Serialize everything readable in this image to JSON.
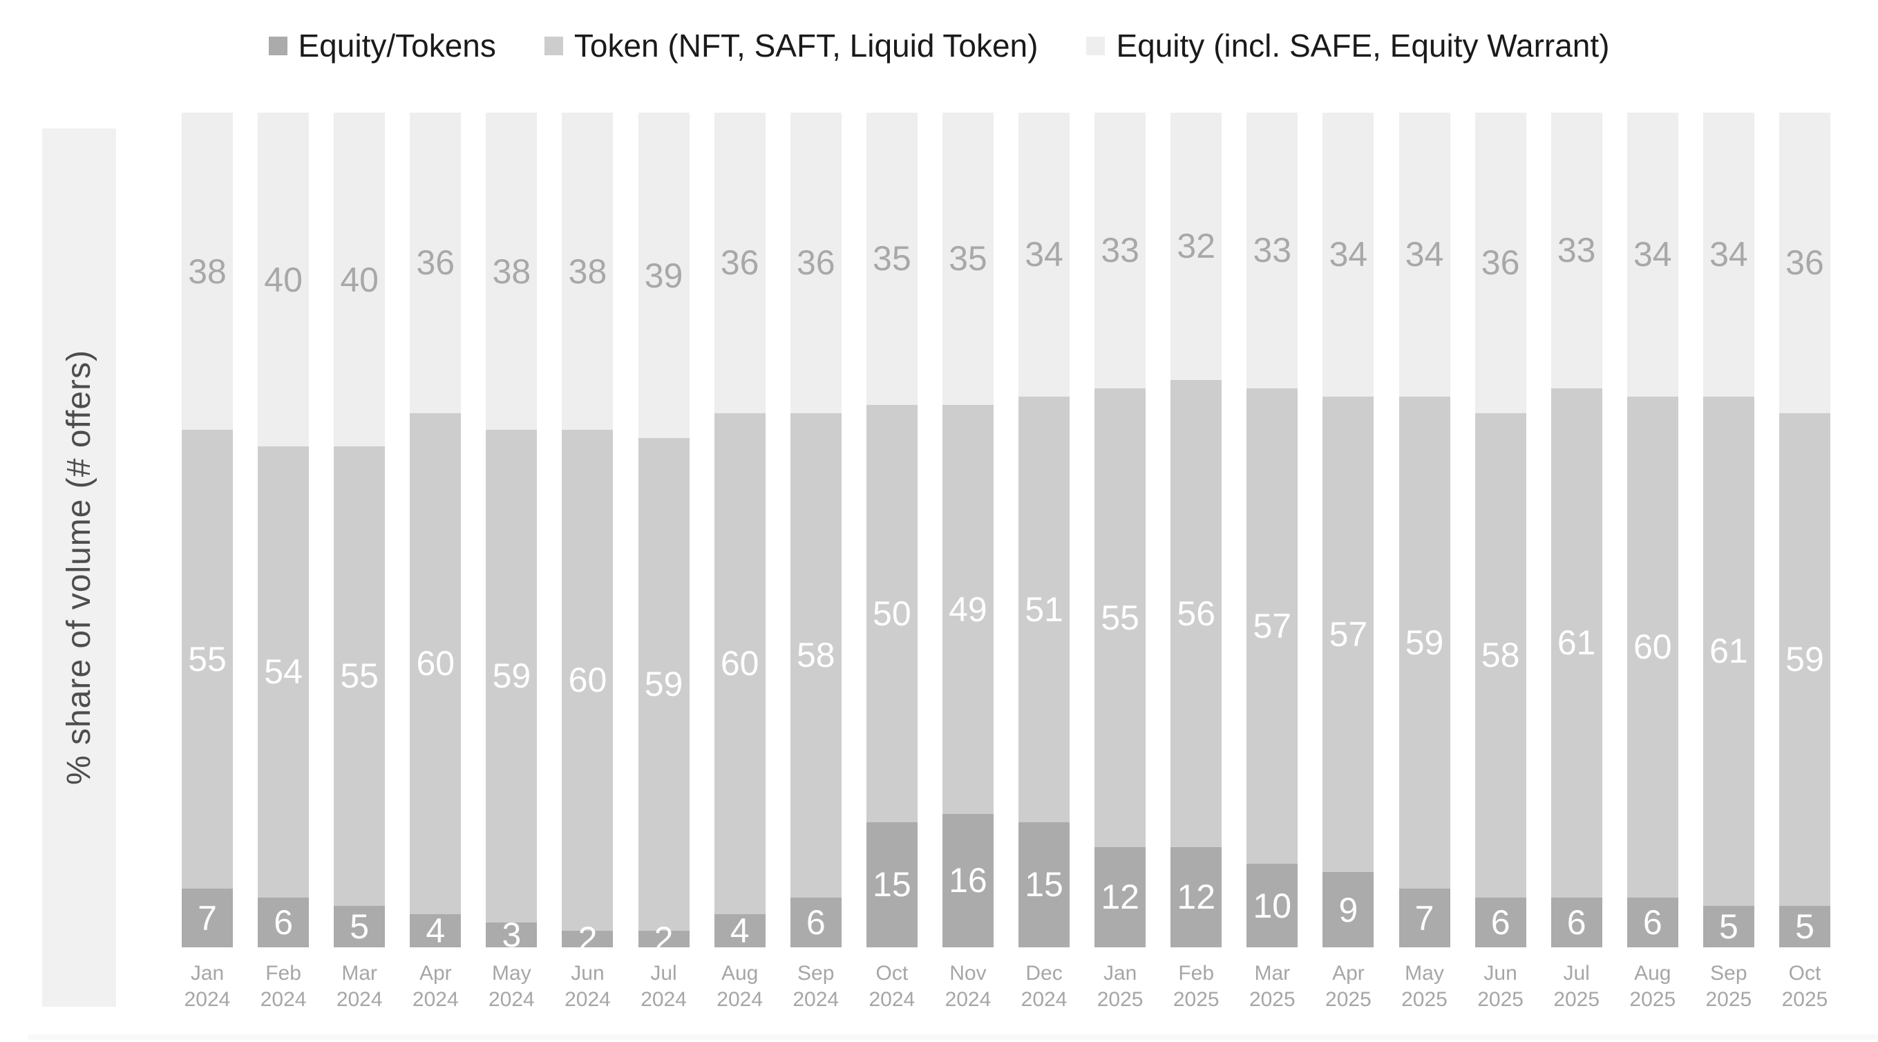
{
  "colors": {
    "background": "#ffffff",
    "legend_text": "#1a1a1a",
    "y_band_background": "#f1f1f1",
    "y_label_text": "#4d4d4d",
    "axis_label_text": "#a6a6a6",
    "inner_value_label_text": "#ffffff",
    "top_value_label_text": "#a8a8a8",
    "bottom_divider": "#f8f8f8"
  },
  "chart_data": {
    "type": "bar",
    "stacked": true,
    "units": "percent_share",
    "title": "",
    "xlabel": "",
    "ylabel": "% share of volume (# offers)",
    "ylim": [
      0,
      100
    ],
    "grid": false,
    "legend_position": "top",
    "series_order": "bottom-to-top",
    "categories": [
      "Jan 2024",
      "Feb 2024",
      "Mar 2024",
      "Apr 2024",
      "May 2024",
      "Jun 2024",
      "Jul 2024",
      "Aug 2024",
      "Sep 2024",
      "Oct 2024",
      "Nov 2024",
      "Dec 2024",
      "Jan 2025",
      "Feb 2025",
      "Mar 2025",
      "Apr 2025",
      "May 2025",
      "Jun 2025",
      "Jul 2025",
      "Aug 2025",
      "Sep 2025",
      "Oct 2025"
    ],
    "series": [
      {
        "id": "equity-tokens",
        "name": "Equity/Tokens",
        "color": "#ababab",
        "label_color": "#ffffff",
        "values": [
          7,
          6,
          5,
          4,
          3,
          2,
          2,
          4,
          6,
          15,
          16,
          15,
          12,
          12,
          10,
          9,
          7,
          6,
          6,
          6,
          5,
          5
        ]
      },
      {
        "id": "token",
        "name": "Token (NFT, SAFT, Liquid Token)",
        "color": "#cdcdcd",
        "label_color": "#ffffff",
        "values": [
          55,
          54,
          55,
          60,
          59,
          60,
          59,
          60,
          58,
          50,
          49,
          51,
          55,
          56,
          57,
          57,
          59,
          58,
          61,
          60,
          61,
          59
        ]
      },
      {
        "id": "equity",
        "name": "Equity (incl. SAFE, Equity Warrant)",
        "color": "#eeeeee",
        "label_color": "#a8a8a8",
        "values": [
          38,
          40,
          40,
          36,
          38,
          38,
          39,
          36,
          36,
          35,
          35,
          34,
          33,
          32,
          33,
          34,
          34,
          36,
          33,
          34,
          34,
          36
        ]
      }
    ]
  }
}
